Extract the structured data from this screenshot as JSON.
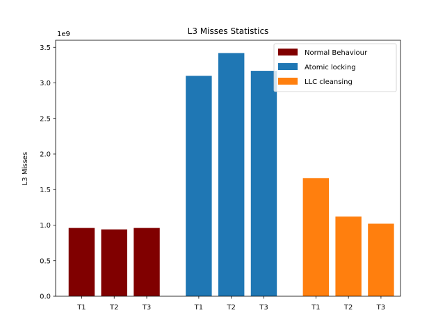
{
  "chart_data": {
    "type": "bar",
    "title": "L3 Misses Statistics",
    "xlabel": "",
    "ylabel": "L3 Misses",
    "y_offset_label": "1e9",
    "ylim": [
      0,
      3.6
    ],
    "yticks": [
      "0.0",
      "0.5",
      "1.0",
      "1.5",
      "2.0",
      "2.5",
      "3.0",
      "3.5"
    ],
    "legend_position": "top-right",
    "grid": false,
    "categories": [
      "T1",
      "T2",
      "T3"
    ],
    "series": [
      {
        "name": "Normal Behaviour",
        "color": "#800000",
        "values": [
          0.96,
          0.94,
          0.96
        ]
      },
      {
        "name": "Atomic locking",
        "color": "#1f77b4",
        "values": [
          3.1,
          3.42,
          3.17
        ]
      },
      {
        "name": "LLC cleansing",
        "color": "#ff7f0e",
        "values": [
          1.66,
          1.12,
          1.02
        ]
      }
    ]
  }
}
